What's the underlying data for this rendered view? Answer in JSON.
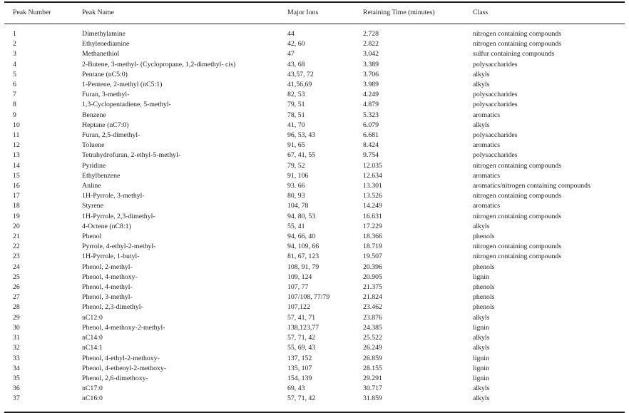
{
  "table": {
    "columns": [
      "Peak Number",
      "Peak Name",
      "Major Ions",
      "Retaining Time (minutes)",
      "Class"
    ],
    "rows": [
      [
        "1",
        "Dimethylamine",
        "44",
        "2.728",
        "nitrogen containing compounds"
      ],
      [
        "2",
        "Ethylenediamine",
        "42, 60",
        "2.822",
        "nitrogen containing compounds"
      ],
      [
        "3",
        "Methanethiol",
        "47",
        "3.042",
        "sulfur containing compounds"
      ],
      [
        "4",
        "2-Butene, 3-methyl- (Cyclopropane, 1,2-dimethyl- cis)",
        "43, 68",
        "3.389",
        "polysaccharides"
      ],
      [
        "5",
        "Pentane (nC5:0)",
        "43,57, 72",
        "3.706",
        "alkyls"
      ],
      [
        "6",
        "1-Pentene, 2-methyl (nC5:1)",
        "41,56,69",
        "3.989",
        "alkyls"
      ],
      [
        "7",
        "Furan, 3-methyl-",
        "82, 53",
        "4.249",
        "polysaccharides"
      ],
      [
        "8",
        "1,3-Cyclopentadiene, 5-methyl-",
        "79, 51",
        "4.879",
        "polysaccharides"
      ],
      [
        "9",
        "Benzene",
        "78, 51",
        "5.323",
        "aromatics"
      ],
      [
        "10",
        "Heptane (nC7:0)",
        "41, 70",
        "6.079",
        "alkyls"
      ],
      [
        "11",
        "Furan, 2,5-dimethyl-",
        "96, 53, 43",
        "6.681",
        "polysaccharides"
      ],
      [
        "12",
        "Toluene",
        "91, 65",
        "8.424",
        "aromatics"
      ],
      [
        "13",
        "Tetrahydrofuran, 2-ethyl-5-methyl-",
        "67, 41, 55",
        "9.754",
        "polysaccharides"
      ],
      [
        "14",
        "Pyridine",
        "79, 52",
        "12.035",
        "nitrogen containing compounds"
      ],
      [
        "15",
        "Ethylbenzene",
        "91, 106",
        "12.634",
        "aromatics"
      ],
      [
        "16",
        "Anline",
        "93. 66",
        "13.301",
        "aromatics/nitrogen containing compounds"
      ],
      [
        "17",
        "1H-Pyrrole, 3-methyl-",
        "80, 93",
        "13.526",
        "nitrogen containing compounds"
      ],
      [
        "18",
        "Styrene",
        "104, 78",
        "14.249",
        "aromatics"
      ],
      [
        "19",
        "1H-Pyrrole, 2,3-dimethyl-",
        "94, 80, 53",
        "16.631",
        "nitrogen containing compounds"
      ],
      [
        "20",
        "4-Octene (nC8:1)",
        "55, 41",
        "17.229",
        "alkyls"
      ],
      [
        "21",
        "Phenol",
        "94, 66, 40",
        "18.366",
        "phenols"
      ],
      [
        "22",
        "Pyrrole, 4-ethyl-2-methyl-",
        "94, 109, 66",
        "18.719",
        "nitrogen containing compounds"
      ],
      [
        "23",
        "1H-Pyrrole, 1-butyl-",
        "81, 67, 123",
        "19.507",
        "nitrogen containing compounds"
      ],
      [
        "24",
        "Phenol, 2-methyl-",
        "108, 91, 79",
        "20.396",
        "phenols"
      ],
      [
        "25",
        "Phenol, 4-methoxy-",
        "109, 124",
        "20.905",
        "lignin"
      ],
      [
        "26",
        "Phenol, 4-methyl-",
        "107, 77",
        "21.375",
        "phenols"
      ],
      [
        "27",
        "Phenol, 3-methyl-",
        "107/108, 77/79",
        "21.824",
        "phenols"
      ],
      [
        "28",
        "Phenol, 2,3-dimethyl-",
        "107,122",
        "23.462",
        "phenols"
      ],
      [
        "29",
        "nC12:0",
        "57, 41, 71",
        "23.876",
        "alkyls"
      ],
      [
        "30",
        "Phenol, 4-methoxy-2-methyl-",
        "138,123,77",
        "24.385",
        "lignin"
      ],
      [
        "31",
        "nC14:0",
        "57, 71, 42",
        "25.522",
        "alkyls"
      ],
      [
        "32",
        "nC14:1",
        "55, 69, 43",
        "26.249",
        "alkyls"
      ],
      [
        "33",
        "Phenol, 4-ethyl-2-methoxy-",
        "137, 152",
        "26.859",
        "lignin"
      ],
      [
        "34",
        "Phenol, 4-ethenyl-2-methoxy-",
        "135, 107",
        "28.155",
        "lignin"
      ],
      [
        "35",
        "Phenol, 2,6-dimethoxy-",
        "154, 139",
        "29.291",
        "lignin"
      ],
      [
        "36",
        "nC17:0",
        "69, 43",
        "30.717",
        "alkyls"
      ],
      [
        "37",
        "nC16:0",
        "57, 71, 42",
        "31.859",
        "alkyls"
      ]
    ]
  }
}
